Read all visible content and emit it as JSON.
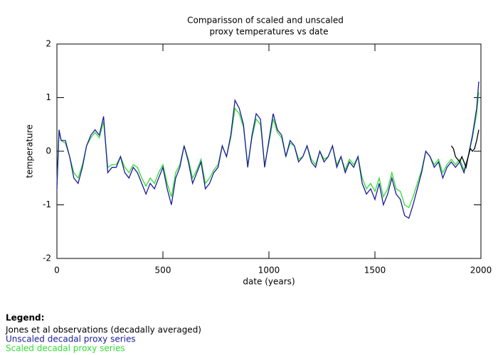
{
  "chart_data": {
    "type": "line",
    "title": [
      "Comparisson of scaled and unscaled",
      "proxy temperatures vs date"
    ],
    "x_label": "date (years)",
    "y_label": "temperature",
    "xlim": [
      0,
      2000
    ],
    "xticks": [
      0,
      500,
      1000,
      1500,
      2000
    ],
    "ylim": [
      -2,
      2
    ],
    "yticks": [
      -2,
      -1,
      0,
      1,
      2
    ],
    "legend_title": "Legend:",
    "series": [
      {
        "name": "Jones et al observations (decadally averaged)",
        "color": "#000000",
        "x": [
          1860,
          1870,
          1880,
          1890,
          1900,
          1910,
          1920,
          1930,
          1940,
          1950,
          1960,
          1970,
          1980,
          1990
        ],
        "values": [
          0.1,
          0.05,
          -0.1,
          -0.15,
          -0.2,
          -0.1,
          -0.2,
          -0.3,
          -0.1,
          0.05,
          0.0,
          0.05,
          0.2,
          0.4
        ]
      },
      {
        "name": "Unscaled decadal proxy series",
        "color": "#1c1c9c",
        "x": [
          0,
          10,
          20,
          40,
          60,
          80,
          100,
          120,
          140,
          160,
          180,
          200,
          220,
          240,
          260,
          280,
          300,
          320,
          340,
          360,
          380,
          400,
          420,
          440,
          460,
          480,
          500,
          520,
          540,
          560,
          580,
          600,
          620,
          640,
          660,
          680,
          700,
          720,
          740,
          760,
          780,
          800,
          820,
          840,
          860,
          880,
          900,
          920,
          940,
          960,
          980,
          1000,
          1020,
          1040,
          1060,
          1080,
          1100,
          1120,
          1140,
          1160,
          1180,
          1200,
          1220,
          1240,
          1260,
          1280,
          1300,
          1320,
          1340,
          1360,
          1380,
          1400,
          1420,
          1440,
          1460,
          1480,
          1500,
          1520,
          1540,
          1560,
          1580,
          1600,
          1620,
          1640,
          1660,
          1680,
          1700,
          1720,
          1740,
          1760,
          1780,
          1800,
          1820,
          1840,
          1860,
          1880,
          1900,
          1920,
          1940,
          1960,
          1980,
          1990
        ],
        "values": [
          -0.7,
          0.4,
          0.2,
          0.2,
          -0.1,
          -0.5,
          -0.6,
          -0.3,
          0.1,
          0.3,
          0.4,
          0.3,
          0.65,
          -0.4,
          -0.3,
          -0.3,
          -0.1,
          -0.4,
          -0.5,
          -0.3,
          -0.4,
          -0.6,
          -0.8,
          -0.6,
          -0.7,
          -0.5,
          -0.3,
          -0.7,
          -1.0,
          -0.5,
          -0.3,
          0.1,
          -0.2,
          -0.6,
          -0.4,
          -0.2,
          -0.7,
          -0.6,
          -0.4,
          -0.3,
          0.1,
          -0.1,
          0.3,
          0.95,
          0.8,
          0.5,
          -0.3,
          0.3,
          0.7,
          0.6,
          -0.3,
          0.2,
          0.7,
          0.4,
          0.3,
          -0.1,
          0.2,
          0.1,
          -0.2,
          -0.1,
          0.1,
          -0.2,
          -0.3,
          0.0,
          -0.2,
          -0.1,
          0.1,
          -0.3,
          -0.1,
          -0.4,
          -0.2,
          -0.3,
          -0.1,
          -0.6,
          -0.8,
          -0.7,
          -0.9,
          -0.6,
          -1.0,
          -0.8,
          -0.5,
          -0.8,
          -0.9,
          -1.2,
          -1.25,
          -1.0,
          -0.7,
          -0.4,
          0.0,
          -0.1,
          -0.3,
          -0.2,
          -0.5,
          -0.3,
          -0.2,
          -0.3,
          -0.2,
          -0.4,
          -0.1,
          0.3,
          0.8,
          1.3
        ]
      },
      {
        "name": "Scaled decadal proxy series",
        "color": "#33dd33",
        "x": [
          0,
          10,
          20,
          40,
          60,
          80,
          100,
          120,
          140,
          160,
          180,
          200,
          220,
          240,
          260,
          280,
          300,
          320,
          340,
          360,
          380,
          400,
          420,
          440,
          460,
          480,
          500,
          520,
          540,
          560,
          580,
          600,
          620,
          640,
          660,
          680,
          700,
          720,
          740,
          760,
          780,
          800,
          820,
          840,
          860,
          880,
          900,
          920,
          940,
          960,
          980,
          1000,
          1020,
          1040,
          1060,
          1080,
          1100,
          1120,
          1140,
          1160,
          1180,
          1200,
          1220,
          1240,
          1260,
          1280,
          1300,
          1320,
          1340,
          1360,
          1380,
          1400,
          1420,
          1440,
          1460,
          1480,
          1500,
          1520,
          1540,
          1560,
          1580,
          1600,
          1620,
          1640,
          1660,
          1680,
          1700,
          1720,
          1740,
          1760,
          1780,
          1800,
          1820,
          1840,
          1860,
          1880,
          1900,
          1920,
          1940,
          1960,
          1980,
          1990
        ],
        "values": [
          -0.6,
          0.35,
          0.2,
          0.15,
          -0.1,
          -0.4,
          -0.5,
          -0.25,
          0.1,
          0.25,
          0.35,
          0.25,
          0.55,
          -0.3,
          -0.25,
          -0.25,
          -0.1,
          -0.3,
          -0.4,
          -0.25,
          -0.3,
          -0.5,
          -0.65,
          -0.5,
          -0.6,
          -0.4,
          -0.25,
          -0.6,
          -0.85,
          -0.4,
          -0.25,
          0.1,
          -0.15,
          -0.5,
          -0.35,
          -0.15,
          -0.6,
          -0.5,
          -0.35,
          -0.25,
          0.1,
          -0.1,
          0.25,
          0.8,
          0.7,
          0.45,
          -0.25,
          0.25,
          0.6,
          0.5,
          -0.25,
          0.15,
          0.6,
          0.35,
          0.25,
          -0.1,
          0.15,
          0.1,
          -0.15,
          -0.1,
          0.1,
          -0.15,
          -0.25,
          0.0,
          -0.15,
          -0.1,
          0.1,
          -0.25,
          -0.1,
          -0.35,
          -0.15,
          -0.25,
          -0.1,
          -0.5,
          -0.7,
          -0.6,
          -0.75,
          -0.5,
          -0.85,
          -0.7,
          -0.4,
          -0.7,
          -0.75,
          -1.0,
          -1.05,
          -0.85,
          -0.6,
          -0.35,
          0.0,
          -0.1,
          -0.25,
          -0.15,
          -0.4,
          -0.25,
          -0.15,
          -0.25,
          -0.15,
          -0.35,
          -0.1,
          0.25,
          0.7,
          1.1
        ]
      }
    ]
  }
}
